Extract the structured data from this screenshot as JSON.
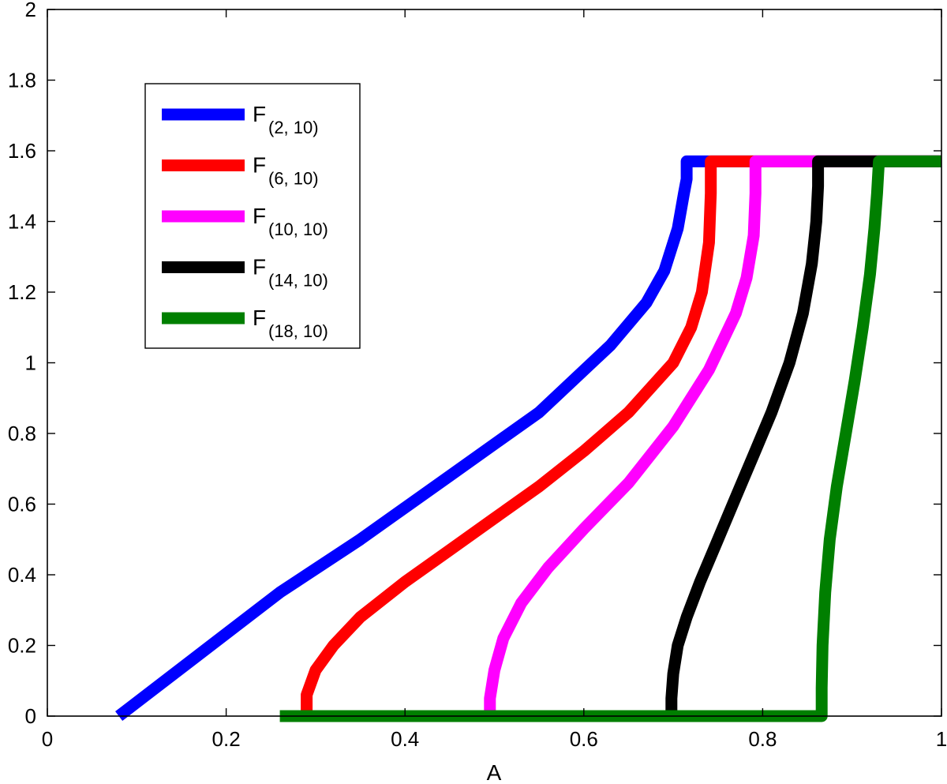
{
  "chart_data": {
    "type": "line",
    "title": "",
    "xlabel": "A",
    "ylabel": "",
    "xlim": [
      0,
      1
    ],
    "ylim": [
      0,
      2
    ],
    "xticks": [
      0,
      0.2,
      0.4,
      0.6,
      0.8,
      1
    ],
    "xtick_labels": [
      "0",
      "0.2",
      "0.4",
      "0.6",
      "0.8",
      "1"
    ],
    "yticks": [
      0,
      0.2,
      0.4,
      0.6,
      0.8,
      1,
      1.2,
      1.4,
      1.6,
      1.8,
      2
    ],
    "ytick_labels": [
      "0",
      "0.2",
      "0.4",
      "0.6",
      "0.8",
      "1",
      "1.2",
      "1.4",
      "1.6",
      "1.8",
      "2"
    ],
    "grid": false,
    "legend_position": "upper-left",
    "series": [
      {
        "name": "F(2, 10)",
        "label_main": "F",
        "label_sub": "(2, 10)",
        "color": "#0000ff",
        "x": [
          0.08,
          0.26,
          0.35,
          0.45,
          0.55,
          0.63,
          0.67,
          0.69,
          0.705,
          0.712,
          0.715,
          0.715,
          0.72,
          1.0
        ],
        "y": [
          0.0,
          0.35,
          0.5,
          0.68,
          0.86,
          1.05,
          1.17,
          1.26,
          1.38,
          1.48,
          1.52,
          1.57,
          1.57,
          1.57
        ]
      },
      {
        "name": "F(6, 10)",
        "label_main": "F",
        "label_sub": "(6, 10)",
        "color": "#ff0000",
        "x": [
          0.29,
          0.29,
          0.3,
          0.32,
          0.35,
          0.4,
          0.45,
          0.5,
          0.55,
          0.6,
          0.65,
          0.7,
          0.72,
          0.732,
          0.74,
          0.742,
          0.742,
          0.75,
          1.0
        ],
        "y": [
          0.0,
          0.06,
          0.13,
          0.2,
          0.28,
          0.38,
          0.47,
          0.56,
          0.65,
          0.75,
          0.86,
          1.0,
          1.1,
          1.2,
          1.34,
          1.48,
          1.57,
          1.57,
          1.57
        ]
      },
      {
        "name": "F(10, 10)",
        "label_main": "F",
        "label_sub": "(10, 10)",
        "color": "#ff00ff",
        "x": [
          0.495,
          0.495,
          0.5,
          0.51,
          0.53,
          0.56,
          0.6,
          0.65,
          0.7,
          0.74,
          0.77,
          0.782,
          0.79,
          0.792,
          0.792,
          0.8,
          1.0
        ],
        "y": [
          0.0,
          0.05,
          0.13,
          0.22,
          0.32,
          0.42,
          0.53,
          0.66,
          0.82,
          0.98,
          1.14,
          1.24,
          1.36,
          1.48,
          1.57,
          1.57,
          1.57
        ]
      },
      {
        "name": "F(14, 10)",
        "label_main": "F",
        "label_sub": "(14, 10)",
        "color": "#000000",
        "x": [
          0.698,
          0.698,
          0.7,
          0.705,
          0.715,
          0.73,
          0.75,
          0.77,
          0.79,
          0.81,
          0.83,
          0.845,
          0.855,
          0.86,
          0.862,
          0.862,
          0.87,
          1.0
        ],
        "y": [
          0.0,
          0.05,
          0.12,
          0.2,
          0.28,
          0.38,
          0.5,
          0.62,
          0.74,
          0.86,
          1.0,
          1.14,
          1.28,
          1.4,
          1.5,
          1.57,
          1.57,
          1.57
        ]
      },
      {
        "name": "F(18, 10)",
        "label_main": "F",
        "label_sub": "(18, 10)",
        "color": "#007f00",
        "x": [
          0.26,
          0.866,
          0.866,
          0.867,
          0.87,
          0.875,
          0.883,
          0.893,
          0.903,
          0.912,
          0.92,
          0.925,
          0.928,
          0.93,
          0.935,
          1.0
        ],
        "y": [
          0.0,
          0.0,
          0.08,
          0.2,
          0.35,
          0.5,
          0.65,
          0.8,
          0.95,
          1.1,
          1.25,
          1.38,
          1.48,
          1.57,
          1.57,
          1.57
        ]
      }
    ]
  }
}
